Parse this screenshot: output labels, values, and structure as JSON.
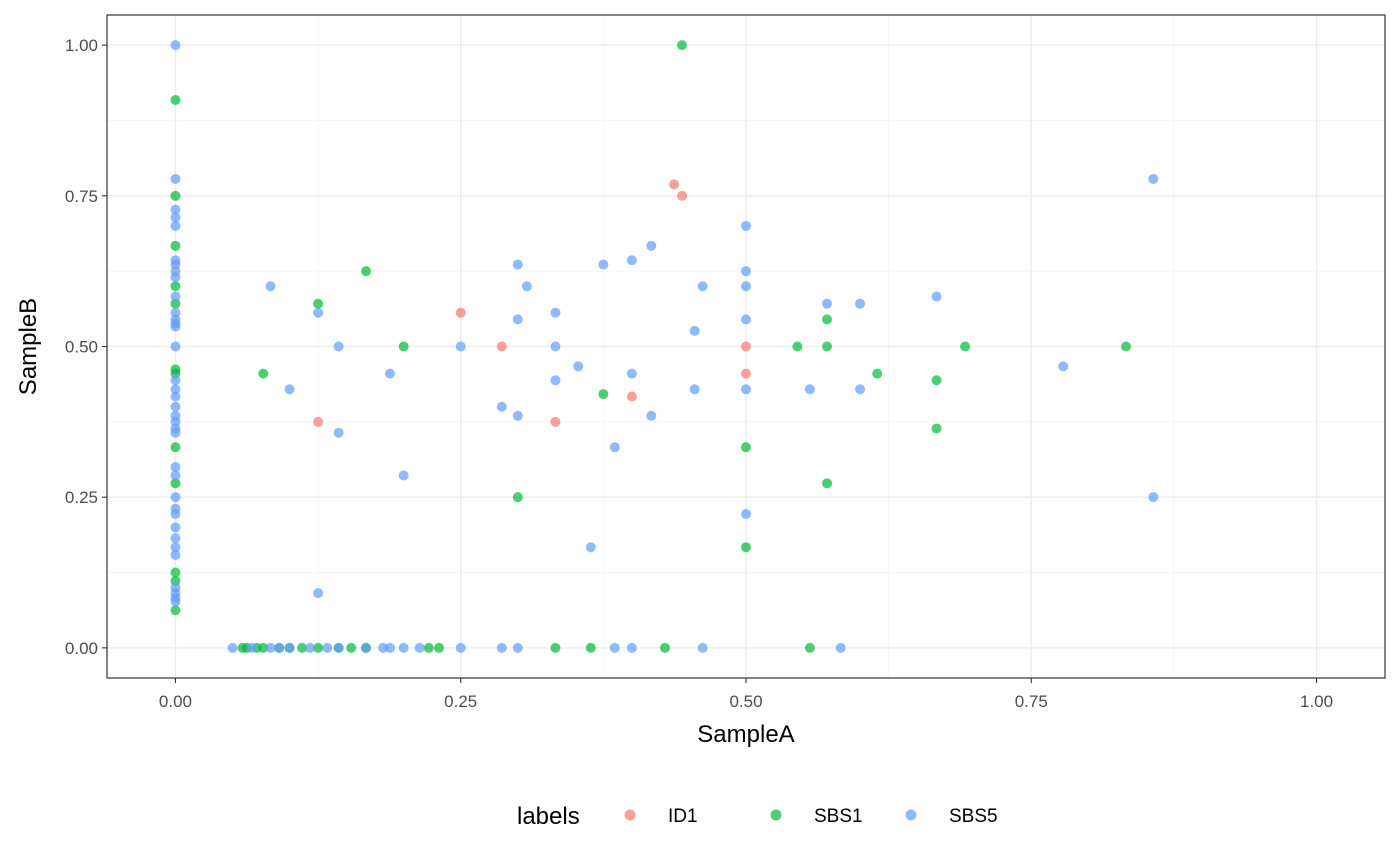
{
  "chart_data": {
    "type": "scatter",
    "title": "",
    "xlabel": "SampleA",
    "ylabel": "SampleB",
    "xlim": [
      -0.06,
      1.06
    ],
    "ylim": [
      -0.05,
      1.05
    ],
    "x_ticks": [
      0,
      0.25,
      0.5,
      0.75,
      1
    ],
    "x_tick_labels": [
      "0.00",
      "0.25",
      "0.50",
      "0.75",
      "1.00"
    ],
    "y_ticks": [
      0,
      0.25,
      0.5,
      0.75,
      1
    ],
    "y_tick_labels": [
      "0.00",
      "0.25",
      "0.50",
      "0.75",
      "1.00"
    ],
    "grid": true,
    "theme": "bw",
    "point_opacity": 0.7,
    "legend": {
      "title": "labels",
      "position": "bottom"
    },
    "series": [
      {
        "name": "ID1",
        "color": "#F8766D",
        "points": [
          [
            0.125,
            0.375
          ],
          [
            0.25,
            0.556
          ],
          [
            0.286,
            0.5
          ],
          [
            0.333,
            0.375
          ],
          [
            0.4,
            0.417
          ],
          [
            0.437,
            0.769
          ],
          [
            0.444,
            0.75
          ],
          [
            0.5,
            0.5
          ],
          [
            0.5,
            0.455
          ]
        ]
      },
      {
        "name": "SBS1",
        "color": "#00BA38",
        "points": [
          [
            0,
            0.909
          ],
          [
            0,
            0.75
          ],
          [
            0,
            0.667
          ],
          [
            0,
            0.6
          ],
          [
            0,
            0.571
          ],
          [
            0,
            0.462
          ],
          [
            0,
            0.455
          ],
          [
            0,
            0.333
          ],
          [
            0,
            0.273
          ],
          [
            0,
            0.125
          ],
          [
            0,
            0.111
          ],
          [
            0,
            0.0625
          ],
          [
            0.444,
            1.0
          ],
          [
            0.077,
            0.455
          ],
          [
            0.125,
            0.571
          ],
          [
            0.167,
            0.625
          ],
          [
            0.2,
            0.5
          ],
          [
            0.3,
            0.25
          ],
          [
            0.375,
            0.421
          ],
          [
            0.5,
            0.333
          ],
          [
            0.5,
            0.167
          ],
          [
            0.545,
            0.5
          ],
          [
            0.571,
            0.545
          ],
          [
            0.571,
            0.5
          ],
          [
            0.571,
            0.273
          ],
          [
            0.615,
            0.455
          ],
          [
            0.667,
            0.444
          ],
          [
            0.667,
            0.364
          ],
          [
            0.692,
            0.5
          ],
          [
            0.833,
            0.5
          ],
          [
            0.0588,
            0
          ],
          [
            0.0625,
            0
          ],
          [
            0.0714,
            0
          ],
          [
            0.0769,
            0
          ],
          [
            0.0909,
            0
          ],
          [
            0.1,
            0
          ],
          [
            0.111,
            0
          ],
          [
            0.125,
            0
          ],
          [
            0.143,
            0
          ],
          [
            0.154,
            0
          ],
          [
            0.167,
            0
          ],
          [
            0.222,
            0
          ],
          [
            0.231,
            0
          ],
          [
            0.333,
            0
          ],
          [
            0.364,
            0
          ],
          [
            0.429,
            0
          ],
          [
            0.556,
            0
          ]
        ]
      },
      {
        "name": "SBS5",
        "color": "#619CFF",
        "points": [
          [
            0,
            1.0
          ],
          [
            0,
            0.778
          ],
          [
            0,
            0.727
          ],
          [
            0,
            0.714
          ],
          [
            0,
            0.7
          ],
          [
            0,
            0.643
          ],
          [
            0,
            0.636
          ],
          [
            0,
            0.625
          ],
          [
            0,
            0.615
          ],
          [
            0,
            0.583
          ],
          [
            0,
            0.556
          ],
          [
            0,
            0.545
          ],
          [
            0,
            0.538
          ],
          [
            0,
            0.533
          ],
          [
            0,
            0.5
          ],
          [
            0,
            0.444
          ],
          [
            0,
            0.429
          ],
          [
            0,
            0.417
          ],
          [
            0,
            0.4
          ],
          [
            0,
            0.385
          ],
          [
            0,
            0.375
          ],
          [
            0,
            0.364
          ],
          [
            0,
            0.357
          ],
          [
            0,
            0.3
          ],
          [
            0,
            0.286
          ],
          [
            0,
            0.25
          ],
          [
            0,
            0.231
          ],
          [
            0,
            0.222
          ],
          [
            0,
            0.2
          ],
          [
            0,
            0.182
          ],
          [
            0,
            0.167
          ],
          [
            0,
            0.154
          ],
          [
            0,
            0.1
          ],
          [
            0,
            0.0909
          ],
          [
            0,
            0.0833
          ],
          [
            0,
            0.0769
          ],
          [
            0.0833,
            0.6
          ],
          [
            0.1,
            0.429
          ],
          [
            0.125,
            0.556
          ],
          [
            0.125,
            0.0909
          ],
          [
            0.143,
            0.5
          ],
          [
            0.143,
            0.357
          ],
          [
            0.188,
            0.455
          ],
          [
            0.2,
            0.286
          ],
          [
            0.25,
            0.5
          ],
          [
            0.286,
            0.4
          ],
          [
            0.3,
            0.636
          ],
          [
            0.3,
            0.545
          ],
          [
            0.3,
            0.385
          ],
          [
            0.308,
            0.6
          ],
          [
            0.333,
            0.556
          ],
          [
            0.333,
            0.5
          ],
          [
            0.333,
            0.444
          ],
          [
            0.353,
            0.467
          ],
          [
            0.364,
            0.167
          ],
          [
            0.375,
            0.636
          ],
          [
            0.385,
            0.333
          ],
          [
            0.4,
            0.643
          ],
          [
            0.4,
            0.455
          ],
          [
            0.417,
            0.667
          ],
          [
            0.417,
            0.385
          ],
          [
            0.455,
            0.526
          ],
          [
            0.455,
            0.429
          ],
          [
            0.462,
            0.6
          ],
          [
            0.5,
            0.7
          ],
          [
            0.5,
            0.625
          ],
          [
            0.5,
            0.6
          ],
          [
            0.5,
            0.545
          ],
          [
            0.5,
            0.429
          ],
          [
            0.5,
            0.222
          ],
          [
            0.556,
            0.429
          ],
          [
            0.571,
            0.571
          ],
          [
            0.6,
            0.571
          ],
          [
            0.6,
            0.429
          ],
          [
            0.667,
            0.583
          ],
          [
            0.778,
            0.467
          ],
          [
            0.857,
            0.778
          ],
          [
            0.857,
            0.25
          ],
          [
            0.05,
            0
          ],
          [
            0.0667,
            0
          ],
          [
            0.0833,
            0
          ],
          [
            0.0909,
            0
          ],
          [
            0.1,
            0
          ],
          [
            0.118,
            0
          ],
          [
            0.133,
            0
          ],
          [
            0.143,
            0
          ],
          [
            0.167,
            0
          ],
          [
            0.182,
            0
          ],
          [
            0.188,
            0
          ],
          [
            0.2,
            0
          ],
          [
            0.214,
            0
          ],
          [
            0.25,
            0
          ],
          [
            0.286,
            0
          ],
          [
            0.3,
            0
          ],
          [
            0.385,
            0
          ],
          [
            0.4,
            0
          ],
          [
            0.462,
            0
          ],
          [
            0.583,
            0
          ]
        ]
      }
    ]
  }
}
